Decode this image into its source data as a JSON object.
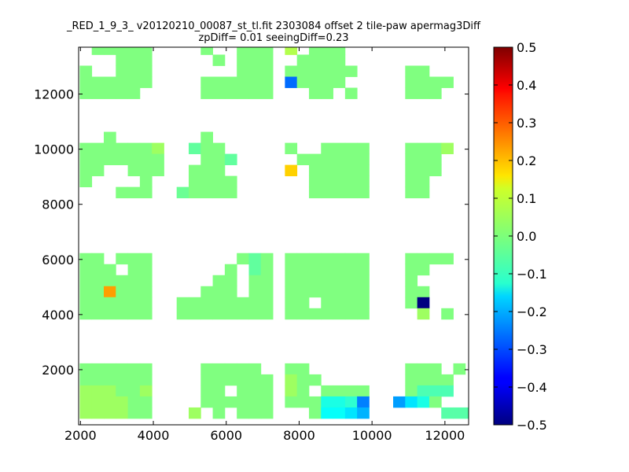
{
  "chart_data": {
    "type": "heatmap",
    "title_lines": [
      "_RED_1_9_3_ v20120210_00087_st_tl.fit 2303084 offset 2 tile-paw apermag3Diff",
      "zpDiff= 0.01 seeingDiff=0.23"
    ],
    "xlabel": "",
    "ylabel": "",
    "xlim": [
      1950,
      12650
    ],
    "ylim": [
      0,
      13700
    ],
    "xticks": [
      2000,
      4000,
      6000,
      8000,
      10000,
      12000
    ],
    "yticks": [
      2000,
      4000,
      6000,
      8000,
      10000,
      12000
    ],
    "grid": false,
    "colormap": "jet",
    "colorbar": {
      "vmin": -0.5,
      "vmax": 0.5,
      "ticks": [
        0.5,
        0.4,
        0.3,
        0.2,
        0.1,
        0.0,
        -0.1,
        -0.2,
        -0.3,
        -0.4,
        -0.5
      ]
    },
    "cell_width": 330,
    "cell_height": 400,
    "default_value": 0.0,
    "cells": [
      [
        2310,
        13430
      ],
      [
        2640,
        13430
      ],
      [
        2970,
        13430
      ],
      [
        3300,
        13430
      ],
      [
        3630,
        13430
      ],
      [
        2970,
        13030
      ],
      [
        3300,
        13030
      ],
      [
        3630,
        13030
      ],
      [
        1980,
        12630
      ],
      [
        2970,
        12630
      ],
      [
        3300,
        12630
      ],
      [
        3630,
        12630
      ],
      [
        1980,
        12230
      ],
      [
        2310,
        12230
      ],
      [
        2640,
        12230
      ],
      [
        2970,
        12230
      ],
      [
        3300,
        12230
      ],
      [
        3630,
        12230
      ],
      [
        1980,
        11830
      ],
      [
        2310,
        11830
      ],
      [
        2640,
        11830
      ],
      [
        2970,
        11830
      ],
      [
        3300,
        11830
      ],
      [
        5300,
        13430
      ],
      [
        6290,
        13430
      ],
      [
        6620,
        13430
      ],
      [
        6950,
        13430
      ],
      [
        5630,
        13030
      ],
      [
        6290,
        13030
      ],
      [
        6620,
        13030
      ],
      [
        6950,
        13030
      ],
      [
        6290,
        12630
      ],
      [
        6620,
        12630
      ],
      [
        6950,
        12630
      ],
      [
        5300,
        12230
      ],
      [
        5630,
        12230
      ],
      [
        5960,
        12230
      ],
      [
        6290,
        12230
      ],
      [
        6620,
        12230
      ],
      [
        6950,
        12230
      ],
      [
        5300,
        11830
      ],
      [
        5630,
        11830
      ],
      [
        5960,
        11830
      ],
      [
        6290,
        11830
      ],
      [
        6620,
        11830
      ],
      [
        6950,
        11830
      ],
      [
        7610,
        13430,
        0.05
      ],
      [
        8270,
        13430
      ],
      [
        8600,
        13430
      ],
      [
        8930,
        13430
      ],
      [
        7940,
        13030
      ],
      [
        8270,
        13030
      ],
      [
        8600,
        13030
      ],
      [
        8930,
        13030
      ],
      [
        7610,
        12630
      ],
      [
        7940,
        12630
      ],
      [
        8270,
        12630
      ],
      [
        8600,
        12630
      ],
      [
        8930,
        12630
      ],
      [
        9260,
        12630
      ],
      [
        7610,
        12230,
        -0.27
      ],
      [
        7940,
        12230
      ],
      [
        8270,
        12230
      ],
      [
        8600,
        12230
      ],
      [
        8930,
        12230
      ],
      [
        8270,
        11830
      ],
      [
        8600,
        11830
      ],
      [
        9260,
        11830
      ],
      [
        10910,
        12630
      ],
      [
        11240,
        12630
      ],
      [
        10910,
        12230
      ],
      [
        11240,
        12230
      ],
      [
        11570,
        12230
      ],
      [
        11900,
        12230
      ],
      [
        10910,
        11830
      ],
      [
        11240,
        11830
      ],
      [
        11570,
        11830
      ],
      [
        2640,
        10230
      ],
      [
        1980,
        9830
      ],
      [
        2310,
        9830
      ],
      [
        2640,
        9830
      ],
      [
        2970,
        9830
      ],
      [
        3300,
        9830
      ],
      [
        3630,
        9830
      ],
      [
        3960,
        9830,
        0.03
      ],
      [
        1980,
        9430
      ],
      [
        2310,
        9430
      ],
      [
        2640,
        9430
      ],
      [
        2970,
        9430
      ],
      [
        3300,
        9430
      ],
      [
        3630,
        9430
      ],
      [
        3960,
        9430
      ],
      [
        1980,
        9030
      ],
      [
        2310,
        9030
      ],
      [
        3300,
        9030
      ],
      [
        3630,
        9030
      ],
      [
        3960,
        9030
      ],
      [
        1980,
        8630
      ],
      [
        3630,
        8630
      ],
      [
        2970,
        8230
      ],
      [
        3300,
        8230
      ],
      [
        3630,
        8230
      ],
      [
        5300,
        10230
      ],
      [
        4970,
        9830,
        -0.03
      ],
      [
        5300,
        9830
      ],
      [
        5630,
        9830
      ],
      [
        5300,
        9430
      ],
      [
        5630,
        9430
      ],
      [
        5960,
        9430,
        -0.03
      ],
      [
        4970,
        9030
      ],
      [
        5300,
        9030
      ],
      [
        5630,
        9030
      ],
      [
        4970,
        8630
      ],
      [
        5300,
        8630
      ],
      [
        5630,
        8630
      ],
      [
        5960,
        8630
      ],
      [
        4640,
        8230,
        -0.02
      ],
      [
        4970,
        8230
      ],
      [
        5300,
        8230
      ],
      [
        5630,
        8230
      ],
      [
        5960,
        8230
      ],
      [
        7610,
        9830
      ],
      [
        7940,
        9430
      ],
      [
        7610,
        9030,
        0.17
      ],
      [
        8600,
        9830
      ],
      [
        8930,
        9830
      ],
      [
        9260,
        9830
      ],
      [
        9590,
        9830
      ],
      [
        8270,
        9430
      ],
      [
        8600,
        9430
      ],
      [
        8930,
        9430
      ],
      [
        9260,
        9430
      ],
      [
        9590,
        9430
      ],
      [
        8270,
        9030
      ],
      [
        8600,
        9030
      ],
      [
        8930,
        9030
      ],
      [
        9260,
        9030
      ],
      [
        9590,
        9030
      ],
      [
        8270,
        8630
      ],
      [
        8600,
        8630
      ],
      [
        8930,
        8630
      ],
      [
        9260,
        8630
      ],
      [
        9590,
        8630
      ],
      [
        8270,
        8230
      ],
      [
        8600,
        8230
      ],
      [
        8930,
        8230
      ],
      [
        9260,
        8230
      ],
      [
        9590,
        8230
      ],
      [
        10910,
        9830
      ],
      [
        11240,
        9830
      ],
      [
        11570,
        9830
      ],
      [
        11900,
        9830,
        0.03
      ],
      [
        10910,
        9430
      ],
      [
        11240,
        9430
      ],
      [
        11570,
        9430
      ],
      [
        10910,
        9030
      ],
      [
        11240,
        9030
      ],
      [
        11570,
        9030
      ],
      [
        10910,
        8630
      ],
      [
        11240,
        8630
      ],
      [
        10910,
        8230
      ],
      [
        11240,
        8230
      ],
      [
        1980,
        5830
      ],
      [
        2310,
        5830
      ],
      [
        2970,
        5830
      ],
      [
        3300,
        5830
      ],
      [
        3630,
        5830
      ],
      [
        1980,
        5430
      ],
      [
        2310,
        5430
      ],
      [
        2640,
        5430
      ],
      [
        3300,
        5430
      ],
      [
        3630,
        5430
      ],
      [
        1980,
        5030
      ],
      [
        2310,
        5030
      ],
      [
        2640,
        5030
      ],
      [
        2970,
        5030
      ],
      [
        3300,
        5030
      ],
      [
        3630,
        5030
      ],
      [
        1980,
        4630
      ],
      [
        2310,
        4630
      ],
      [
        2640,
        4630,
        0.22
      ],
      [
        2970,
        4630
      ],
      [
        3300,
        4630
      ],
      [
        3630,
        4630
      ],
      [
        1980,
        4230
      ],
      [
        2310,
        4230
      ],
      [
        2640,
        4230
      ],
      [
        2970,
        4230
      ],
      [
        3300,
        4230
      ],
      [
        3630,
        4230
      ],
      [
        1980,
        3830
      ],
      [
        2310,
        3830
      ],
      [
        2640,
        3830
      ],
      [
        2970,
        3830
      ],
      [
        3300,
        3830
      ],
      [
        3630,
        3830
      ],
      [
        6290,
        5830
      ],
      [
        6620,
        5830,
        -0.03
      ],
      [
        6950,
        5830
      ],
      [
        5960,
        5430
      ],
      [
        6620,
        5430,
        -0.03
      ],
      [
        6950,
        5430
      ],
      [
        5630,
        5030
      ],
      [
        5960,
        5030
      ],
      [
        6620,
        5030
      ],
      [
        6950,
        5030
      ],
      [
        5300,
        4630
      ],
      [
        5630,
        4630
      ],
      [
        5960,
        4630
      ],
      [
        6620,
        4630
      ],
      [
        6950,
        4630
      ],
      [
        4640,
        4230
      ],
      [
        4970,
        4230
      ],
      [
        5300,
        4230
      ],
      [
        5630,
        4230
      ],
      [
        5960,
        4230
      ],
      [
        6290,
        4230
      ],
      [
        6620,
        4230
      ],
      [
        6950,
        4230
      ],
      [
        4640,
        3830
      ],
      [
        4970,
        3830
      ],
      [
        5300,
        3830
      ],
      [
        5630,
        3830
      ],
      [
        5960,
        3830
      ],
      [
        6290,
        3830
      ],
      [
        6620,
        3830
      ],
      [
        6950,
        3830
      ],
      [
        7610,
        5430
      ],
      [
        7940,
        5430
      ],
      [
        8270,
        5430
      ],
      [
        8600,
        5430
      ],
      [
        8930,
        5430
      ],
      [
        9260,
        5430
      ],
      [
        9590,
        5430
      ],
      [
        7610,
        5830
      ],
      [
        7940,
        5830
      ],
      [
        8270,
        5830
      ],
      [
        8600,
        5830
      ],
      [
        8930,
        5830
      ],
      [
        9260,
        5830
      ],
      [
        9590,
        5830
      ],
      [
        7610,
        5030
      ],
      [
        7940,
        5030
      ],
      [
        8270,
        5030
      ],
      [
        8600,
        5030
      ],
      [
        8930,
        5030
      ],
      [
        9260,
        5030
      ],
      [
        9590,
        5030
      ],
      [
        7610,
        4630
      ],
      [
        7940,
        4630
      ],
      [
        8270,
        4630
      ],
      [
        8600,
        4630
      ],
      [
        8930,
        4630
      ],
      [
        9260,
        4630
      ],
      [
        9590,
        4630
      ],
      [
        7610,
        4230
      ],
      [
        7940,
        4230
      ],
      [
        8600,
        4230
      ],
      [
        8930,
        4230
      ],
      [
        9260,
        4230
      ],
      [
        9590,
        4230
      ],
      [
        7610,
        3830
      ],
      [
        7940,
        3830
      ],
      [
        8270,
        3830
      ],
      [
        8600,
        3830
      ],
      [
        8930,
        3830
      ],
      [
        9260,
        3830
      ],
      [
        9590,
        3830
      ],
      [
        10910,
        5830
      ],
      [
        11240,
        5830
      ],
      [
        11570,
        5830
      ],
      [
        11900,
        5830
      ],
      [
        10910,
        5430
      ],
      [
        11240,
        5430
      ],
      [
        10910,
        5030
      ],
      [
        10910,
        4630
      ],
      [
        11240,
        4630
      ],
      [
        10910,
        4230
      ],
      [
        11240,
        4230,
        -0.5
      ],
      [
        11240,
        3830,
        0.03
      ],
      [
        11900,
        3830
      ],
      [
        1980,
        1830
      ],
      [
        2310,
        1830
      ],
      [
        2640,
        1830
      ],
      [
        2970,
        1830
      ],
      [
        3300,
        1830
      ],
      [
        3630,
        1830
      ],
      [
        1980,
        1430
      ],
      [
        2310,
        1430
      ],
      [
        2640,
        1430
      ],
      [
        2970,
        1430
      ],
      [
        3300,
        1430
      ],
      [
        3630,
        1430
      ],
      [
        1980,
        1030,
        0.03
      ],
      [
        2310,
        1030,
        0.03
      ],
      [
        2640,
        1030,
        0.03
      ],
      [
        2970,
        1030
      ],
      [
        3300,
        1030
      ],
      [
        3630,
        1030,
        0.03
      ],
      [
        1980,
        630,
        0.03
      ],
      [
        2310,
        630,
        0.03
      ],
      [
        2640,
        630,
        0.03
      ],
      [
        2970,
        630,
        0.03
      ],
      [
        3300,
        630
      ],
      [
        3630,
        630
      ],
      [
        1980,
        230,
        0.03
      ],
      [
        2310,
        230,
        0.03
      ],
      [
        2640,
        230,
        0.03
      ],
      [
        2970,
        230,
        0.03
      ],
      [
        3300,
        230
      ],
      [
        3630,
        230
      ],
      [
        5300,
        1830
      ],
      [
        5630,
        1830
      ],
      [
        5960,
        1830
      ],
      [
        6290,
        1830
      ],
      [
        6620,
        1830
      ],
      [
        5300,
        1430
      ],
      [
        5630,
        1430
      ],
      [
        5960,
        1430
      ],
      [
        6290,
        1430
      ],
      [
        6620,
        1430
      ],
      [
        6950,
        1430
      ],
      [
        5300,
        1030
      ],
      [
        5630,
        1030
      ],
      [
        6290,
        1030
      ],
      [
        6620,
        1030
      ],
      [
        6950,
        1030
      ],
      [
        5300,
        630
      ],
      [
        5630,
        630
      ],
      [
        5960,
        630
      ],
      [
        6290,
        630
      ],
      [
        6620,
        630
      ],
      [
        6950,
        630
      ],
      [
        4970,
        230,
        0.03
      ],
      [
        5630,
        230
      ],
      [
        6290,
        230
      ],
      [
        6620,
        230
      ],
      [
        6950,
        230
      ],
      [
        7610,
        1830
      ],
      [
        7940,
        1830
      ],
      [
        7610,
        1430,
        0.03
      ],
      [
        7940,
        1430
      ],
      [
        8270,
        1430
      ],
      [
        7610,
        1030,
        0.03
      ],
      [
        7940,
        1030
      ],
      [
        8600,
        1030
      ],
      [
        8930,
        1030
      ],
      [
        9260,
        1030
      ],
      [
        9590,
        1030
      ],
      [
        7610,
        630
      ],
      [
        7940,
        630
      ],
      [
        8270,
        630
      ],
      [
        8600,
        630,
        -0.1
      ],
      [
        8930,
        630,
        -0.1
      ],
      [
        9260,
        630,
        -0.08
      ],
      [
        9590,
        630,
        -0.25
      ],
      [
        8270,
        230
      ],
      [
        8600,
        230,
        -0.12
      ],
      [
        8930,
        230,
        -0.12
      ],
      [
        9260,
        230,
        -0.15
      ],
      [
        9590,
        230,
        -0.2
      ],
      [
        10910,
        1830
      ],
      [
        11240,
        1830
      ],
      [
        11570,
        1830
      ],
      [
        12230,
        1830
      ],
      [
        10910,
        1430
      ],
      [
        11240,
        1430
      ],
      [
        11570,
        1430
      ],
      [
        11900,
        1430
      ],
      [
        10910,
        1030
      ],
      [
        11240,
        1030,
        -0.05
      ],
      [
        11570,
        1030,
        -0.05
      ],
      [
        11900,
        1030,
        -0.05
      ],
      [
        10580,
        630,
        -0.22
      ],
      [
        10910,
        630,
        -0.15
      ],
      [
        11240,
        630,
        -0.1
      ],
      [
        11570,
        630
      ],
      [
        11900,
        230,
        -0.04
      ],
      [
        12230,
        230,
        -0.04
      ],
      [
        12560,
        230,
        -0.04
      ]
    ]
  }
}
